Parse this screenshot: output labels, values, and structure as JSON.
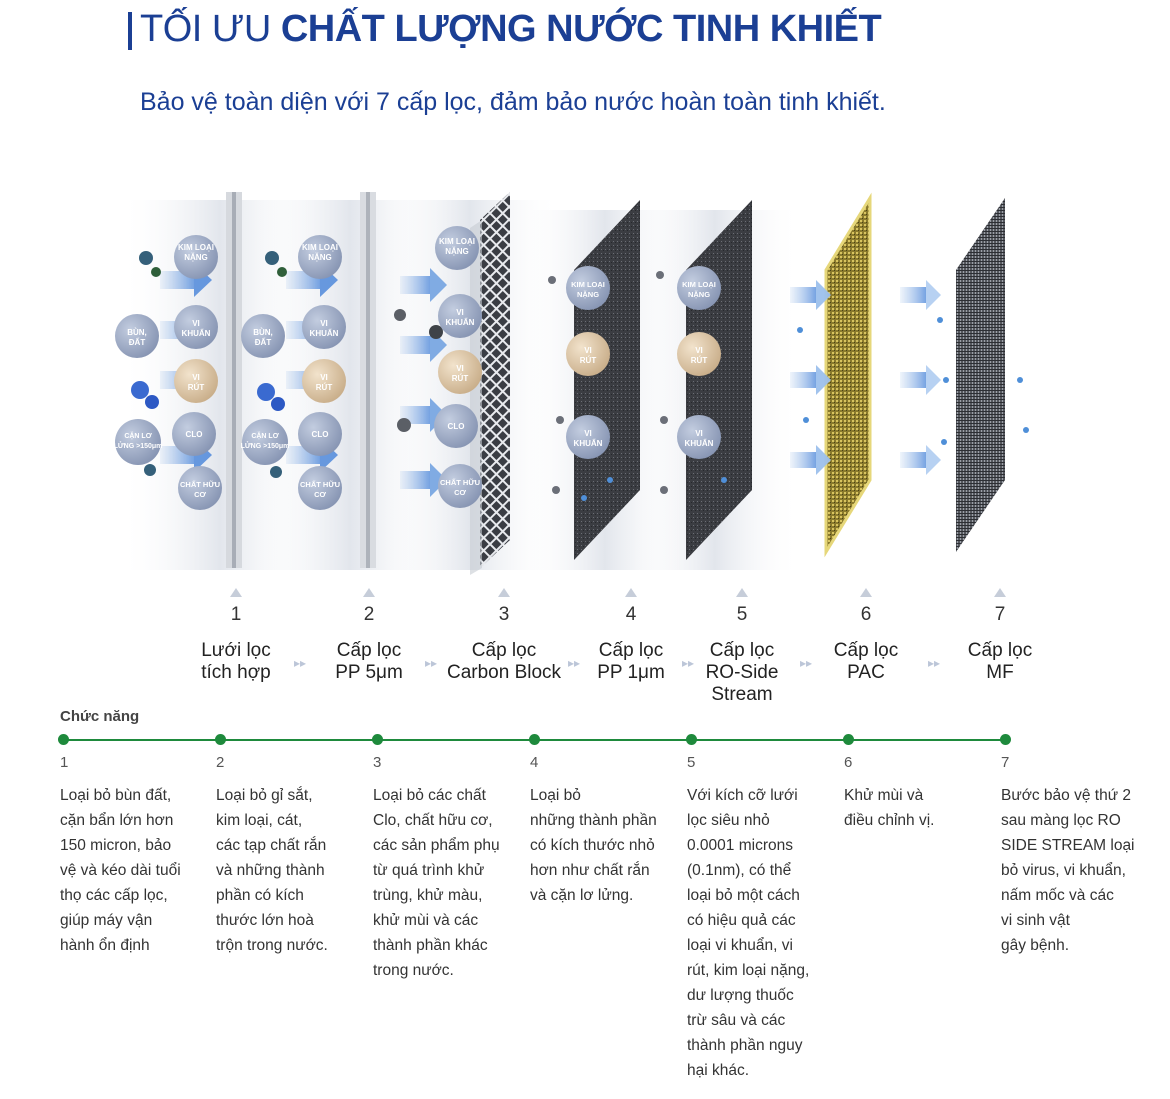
{
  "header": {
    "title_light": "TỐI ƯU",
    "title_bold": "CHẤT LƯỢNG NƯỚC TINH KHIẾT",
    "subtitle": "Bảo vệ toàn diện với 7 cấp lọc, đảm bảo nước hoàn toàn tinh khiết."
  },
  "stages": [
    {
      "num": "1",
      "line1": "Lưới lọc",
      "line2": "tích hợp",
      "line3": ""
    },
    {
      "num": "2",
      "line1": "Cấp lọc",
      "line2": "PP 5μm",
      "line3": ""
    },
    {
      "num": "3",
      "line1": "Cấp lọc",
      "line2": "Carbon Block",
      "line3": ""
    },
    {
      "num": "4",
      "line1": "Cấp lọc",
      "line2": "PP 1μm",
      "line3": ""
    },
    {
      "num": "5",
      "line1": "Cấp lọc",
      "line2": "RO-Side",
      "line3": "Stream"
    },
    {
      "num": "6",
      "line1": "Cấp lọc",
      "line2": "PAC",
      "line3": ""
    },
    {
      "num": "7",
      "line1": "Cấp lọc",
      "line2": "MF",
      "line3": ""
    }
  ],
  "contaminants": {
    "group1": [
      "KIM LOẠI NẶNG",
      "VI KHUẨN",
      "BÙN, ĐẤT",
      "VI RÚT",
      "CLO",
      "CẶN LƠ LỬNG >150μm",
      "CHẤT HỮU CƠ"
    ],
    "group2": [
      "KIM LOẠI NẶNG",
      "VI KHUẨN",
      "BÙN, ĐẤT",
      "VI RÚT",
      "CLO",
      "CẶN LƠ LỬNG >150μm",
      "CHẤT HỮU CƠ"
    ],
    "group3": [
      "KIM LOẠI NẶNG",
      "VI KHUẨN",
      "VI RÚT",
      "CLO",
      "CHẤT HỮU CƠ"
    ],
    "group4": [
      "KIM LOẠI NẶNG",
      "VI RÚT",
      "VI KHUẨN"
    ],
    "group5": [
      "KIM LOẠI NẶNG",
      "VI RÚT",
      "VI KHUẨN"
    ]
  },
  "functions": {
    "heading": "Chức năng",
    "items": [
      {
        "num": "1",
        "lines": [
          "Loại bỏ bùn đất,",
          "cặn bẩn lớn hơn",
          "150 micron, bảo",
          "vệ và kéo dài tuổi",
          "thọ các cấp lọc,",
          "giúp máy vận",
          "hành ổn định"
        ]
      },
      {
        "num": "2",
        "lines": [
          "Loại bỏ gỉ sắt,",
          "kim loại, cát,",
          "các tạp chất rắn",
          "và những thành",
          "phần có kích",
          "thước lớn hoà",
          "trộn trong nước."
        ]
      },
      {
        "num": "3",
        "lines": [
          "Loại bỏ các chất",
          "Clo, chất hữu cơ,",
          "các sản phẩm phụ",
          "từ quá trình khử",
          "trùng, khử màu,",
          "khử mùi và các",
          "thành phần khác",
          "trong nước."
        ]
      },
      {
        "num": "4",
        "lines": [
          "Loại bỏ",
          "những thành phần",
          "có kích thước nhỏ",
          "hơn như chất rắn",
          "và cặn lơ lửng."
        ]
      },
      {
        "num": "5",
        "lines": [
          "Với kích cỡ lưới",
          "lọc siêu nhỏ",
          "0.0001 microns",
          "(0.1nm), có thể",
          "loại bỏ một cách",
          "có hiệu quả các",
          "loại vi khuẩn, vi",
          "rút, kim loại nặng,",
          "dư lượng thuốc",
          "trừ sâu và các",
          "thành phần nguy",
          "hại khác."
        ]
      },
      {
        "num": "6",
        "lines": [
          "Khử mùi và",
          "điều chỉnh vị."
        ]
      },
      {
        "num": "7",
        "lines": [
          "Bước bảo vệ thứ 2",
          "sau màng lọc RO",
          "SIDE STREAM loại",
          "bỏ virus, vi khuẩn,",
          "nấm mốc và các",
          "vi sinh vật",
          "gây bệnh."
        ]
      }
    ]
  },
  "colors": {
    "brand_blue": "#1b3f94",
    "timeline_green": "#1e8a3c",
    "bubble_gray": "#9aa8c2",
    "virus_beige": "#d9c3a5",
    "pac_gold": "#c9b23a",
    "arrow_blue": "#8fb4e6"
  }
}
